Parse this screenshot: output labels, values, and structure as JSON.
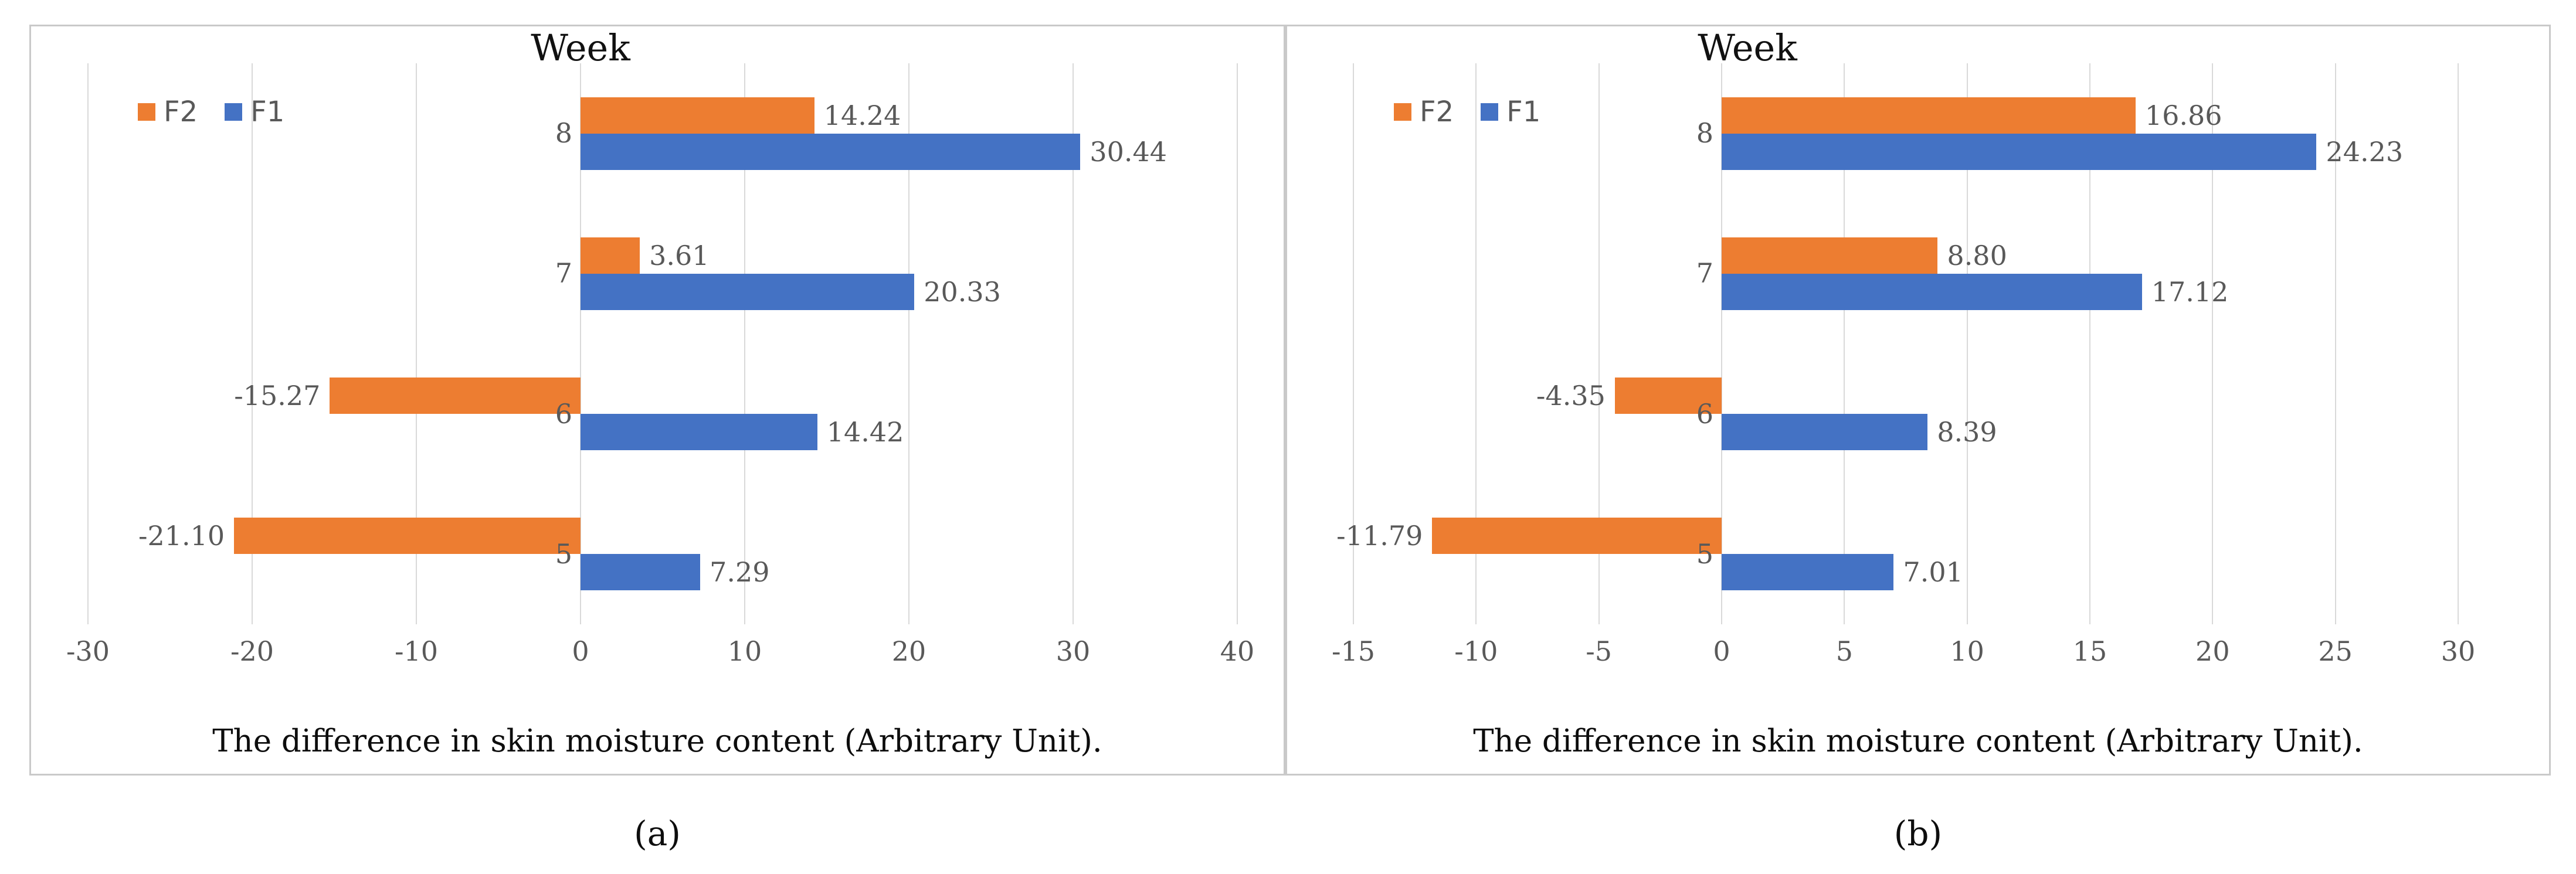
{
  "figure": {
    "panel_labels": [
      "(a)",
      "(b)"
    ]
  },
  "chart_data": [
    {
      "type": "bar",
      "orientation": "horizontal",
      "title": "Week",
      "xlabel": "The difference in skin moisture content (Arbitrary Unit).",
      "ylabel": "Week",
      "categories": [
        "8",
        "7",
        "6",
        "5"
      ],
      "series": [
        {
          "name": "F2",
          "color": "#ED7D31",
          "values": [
            14.24,
            3.61,
            -15.27,
            -21.1
          ],
          "labels": [
            "14.24",
            "3.61",
            "-15.27",
            "-21.10"
          ]
        },
        {
          "name": "F1",
          "color": "#4472C4",
          "values": [
            30.44,
            20.33,
            14.42,
            7.29
          ],
          "labels": [
            "30.44",
            "20.33",
            "14.42",
            "7.29"
          ]
        }
      ],
      "xlim": [
        -30,
        40
      ],
      "xticks": [
        -30,
        -20,
        -10,
        0,
        10,
        20,
        30,
        40
      ],
      "grid": true,
      "legend_position": "top-left"
    },
    {
      "type": "bar",
      "orientation": "horizontal",
      "title": "Week",
      "xlabel": "The difference in skin moisture content (Arbitrary Unit).",
      "ylabel": "Week",
      "categories": [
        "8",
        "7",
        "6",
        "5"
      ],
      "series": [
        {
          "name": "F2",
          "color": "#ED7D31",
          "values": [
            16.86,
            8.8,
            -4.35,
            -11.79
          ],
          "labels": [
            "16.86",
            "8.80",
            "-4.35",
            "-11.79"
          ]
        },
        {
          "name": "F1",
          "color": "#4472C4",
          "values": [
            24.23,
            17.12,
            8.39,
            7.01
          ],
          "labels": [
            "24.23",
            "17.12",
            "8.39",
            "7.01"
          ]
        }
      ],
      "xlim": [
        -15,
        30
      ],
      "xticks": [
        -15,
        -10,
        -5,
        0,
        5,
        10,
        15,
        20,
        25,
        30
      ],
      "grid": true,
      "legend_position": "top-left"
    }
  ]
}
